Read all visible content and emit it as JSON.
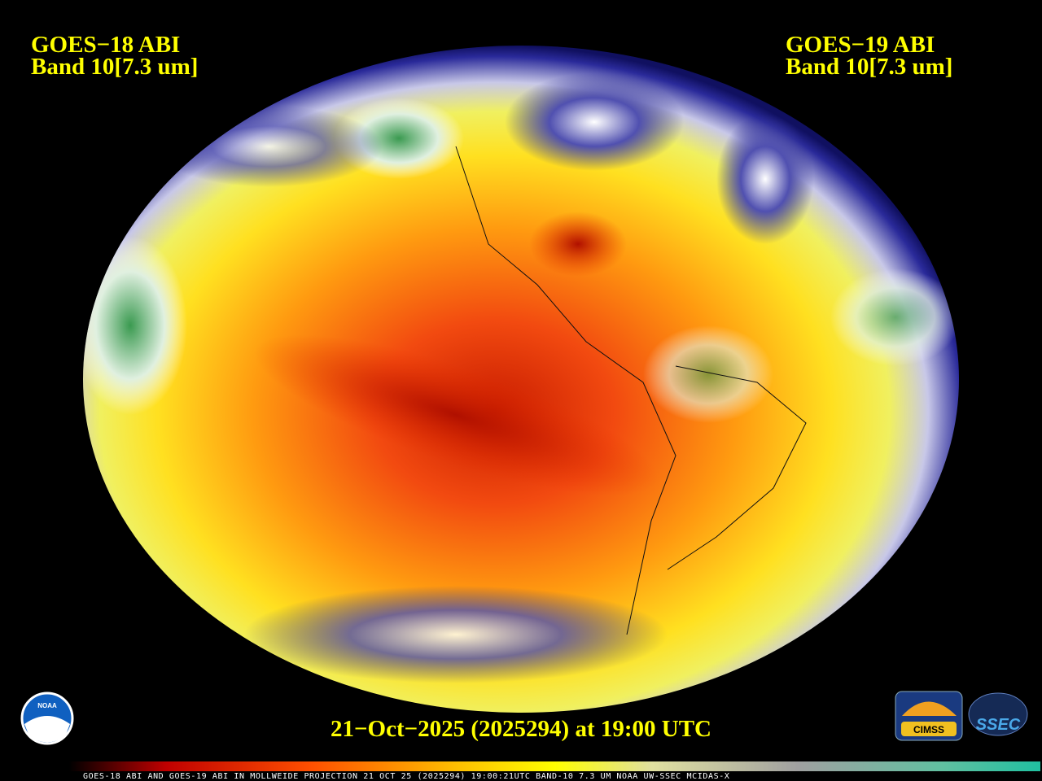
{
  "header": {
    "left": {
      "satellite": "GOES−18 ABI",
      "band": "Band 10[7.3 um]"
    },
    "right": {
      "satellite": "GOES−19 ABI",
      "band": "Band 10[7.3 um]"
    }
  },
  "timestamp": "21−Oct−2025 (2025294) at 19:00 UTC",
  "footer": "GOES-18 ABI AND GOES-19 ABI IN MOLLWEIDE PROJECTION 21 OCT 25 (2025294) 19:00:21UTC BAND-10 7.3 UM NOAA UW-SSEC MCIDAS-X",
  "logos": {
    "noaa": "NOAA",
    "cimss": "CIMSS",
    "ssec": "SSEC"
  }
}
